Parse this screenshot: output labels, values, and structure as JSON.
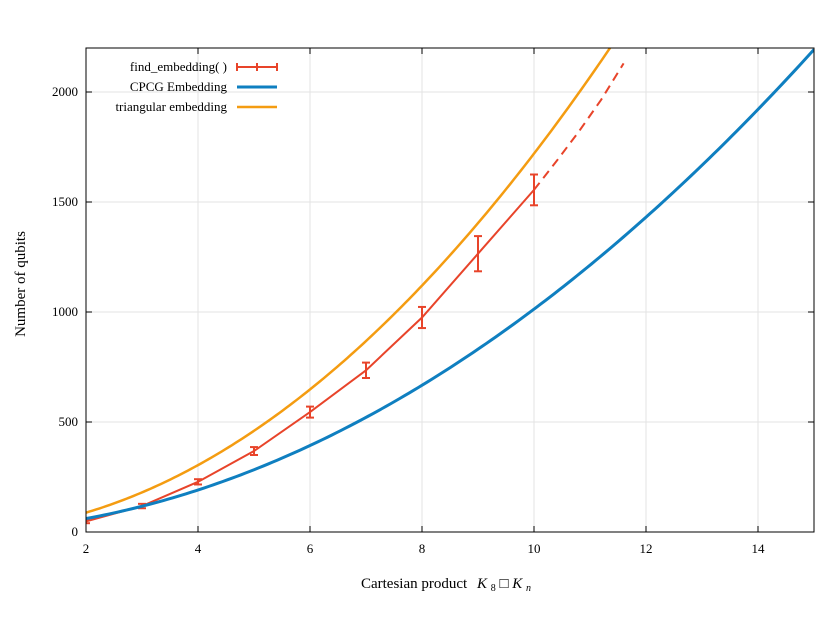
{
  "chart_data": {
    "type": "line",
    "title": "",
    "xlabel": {
      "prefix": "Cartesian product",
      "K": "K",
      "sub1": "8",
      "op": "□",
      "K2": "K",
      "sub2": "n"
    },
    "ylabel": "Number of qubits",
    "xlim": [
      2,
      15
    ],
    "ylim": [
      0,
      2200
    ],
    "xticks": [
      2,
      4,
      6,
      8,
      10,
      12,
      14
    ],
    "yticks": [
      0,
      500,
      1000,
      1500,
      2000
    ],
    "grid": true,
    "legend_position": "top-left",
    "series": [
      {
        "name": "find_embedding( )",
        "color": "#e8442a",
        "style": "line-with-errorbars",
        "x": [
          2,
          3,
          4,
          5,
          6,
          7,
          8,
          9,
          10
        ],
        "y": [
          48,
          118,
          228,
          368,
          545,
          735,
          975,
          1265,
          1555
        ],
        "err": [
          8,
          10,
          12,
          18,
          25,
          35,
          48,
          80,
          70
        ],
        "extrapolation": {
          "style": "dashed",
          "x": [
            10,
            10.4,
            10.8,
            11.2,
            11.6
          ],
          "y": [
            1555,
            1685,
            1820,
            1965,
            2130
          ]
        }
      },
      {
        "name": "CPCG Embedding",
        "color": "#0f7fc0",
        "style": "curve",
        "formula": "9*n*n + 11*n + 3",
        "range": [
          2,
          15
        ]
      },
      {
        "name": "triangular embedding",
        "color": "#f49c11",
        "style": "curve",
        "formula": "16*n*n + 12*n",
        "range": [
          2,
          11.7
        ]
      }
    ]
  }
}
